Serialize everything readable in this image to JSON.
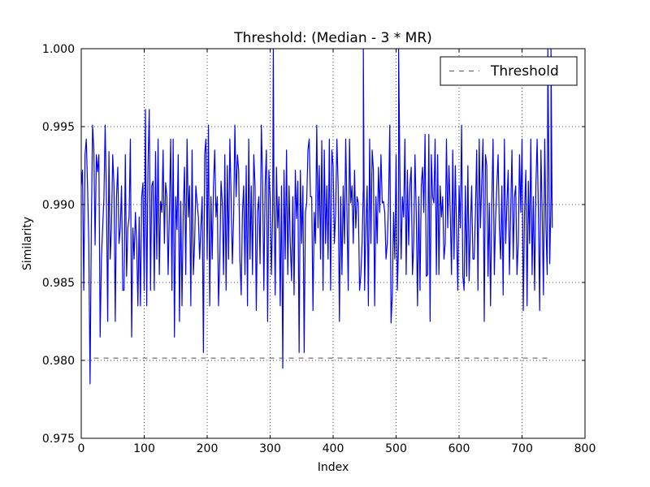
{
  "chart_data": {
    "type": "line",
    "title": "Threshold: (Median - 3 * MR)",
    "xlabel": "Index",
    "ylabel": "Similarity",
    "xlim": [
      0,
      800
    ],
    "ylim": [
      0.975,
      1.0
    ],
    "xticks": [
      0,
      100,
      200,
      300,
      400,
      500,
      600,
      700,
      800
    ],
    "xtick_labels": [
      "0",
      "100",
      "200",
      "300",
      "400",
      "500",
      "600",
      "700",
      "800"
    ],
    "yticks": [
      0.975,
      0.98,
      0.985,
      0.99,
      0.995,
      1.0
    ],
    "ytick_labels": [
      "0.975",
      "0.980",
      "0.985",
      "0.990",
      "0.995",
      "1.000"
    ],
    "grid": true,
    "legend": {
      "position": "top-right",
      "entries": [
        "Threshold"
      ]
    },
    "series": [
      {
        "style": "solid",
        "color": "#0000ff",
        "x_start": 0,
        "x_step": 2,
        "values": [
          0.9912,
          0.9922,
          0.9845,
          0.9932,
          0.9942,
          0.9912,
          0.9875,
          0.9785,
          0.9885,
          0.9951,
          0.9935,
          0.9874,
          0.9932,
          0.9921,
          0.9932,
          0.9815,
          0.9865,
          0.9885,
          0.9904,
          0.9951,
          0.9905,
          0.9825,
          0.9934,
          0.9865,
          0.9885,
          0.9932,
          0.9912,
          0.9825,
          0.9905,
          0.9924,
          0.9875,
          0.9885,
          0.9912,
          0.9845,
          0.9845,
          0.9932,
          0.9854,
          0.9885,
          0.9892,
          0.9942,
          0.9815,
          0.9885,
          0.9865,
          0.9895,
          0.9875,
          0.9835,
          0.9892,
          0.9835,
          0.9905,
          0.9914,
          0.9845,
          0.9961,
          0.9835,
          0.9924,
          0.9961,
          0.9845,
          0.9912,
          0.9915,
          0.9845,
          0.9934,
          0.9865,
          0.9942,
          0.9855,
          0.9902,
          0.9895,
          0.9935,
          0.9875,
          0.9914,
          0.9905,
          0.9855,
          0.9895,
          0.9942,
          0.9845,
          0.9942,
          0.9815,
          0.9905,
          0.9884,
          0.9932,
          0.9825,
          0.9902,
          0.9835,
          0.9895,
          0.9924,
          0.9855,
          0.9942,
          0.9892,
          0.9912,
          0.9835,
          0.9935,
          0.9855,
          0.9875,
          0.9912,
          0.9901,
          0.9892,
          0.9865,
          0.9885,
          0.9905,
          0.9805,
          0.9932,
          0.9942,
          0.9865,
          0.9951,
          0.9835,
          0.9905,
          0.9865,
          0.9912,
          0.9935,
          0.9892,
          0.9905,
          0.9835,
          0.9865,
          0.9915,
          0.9901,
          0.9855,
          0.9932,
          0.9845,
          0.9925,
          0.9865,
          0.9942,
          0.9905,
          0.9862,
          0.9892,
          0.9951,
          0.9905,
          0.9932,
          0.9922,
          0.9865,
          0.9842,
          0.9895,
          0.9912,
          0.9855,
          0.9925,
          0.9835,
          0.9942,
          0.9865,
          0.9912,
          0.9855,
          0.9932,
          0.9912,
          0.9832,
          0.9895,
          0.9905,
          0.9862,
          0.9951,
          0.9915,
          0.9845,
          0.9912,
          0.9935,
          0.9825,
          0.9922,
          0.9905,
          0.9855,
          0.9895,
          0.9912,
          0.9842,
          0.9924,
          0.9885,
          0.9905,
          0.9835,
          0.9912,
          0.9795,
          0.9922,
          0.9865,
          0.9935,
          0.9855,
          0.9912,
          0.9875,
          0.9851,
          0.9905,
          0.9842,
          0.9922,
          0.9891,
          0.9915,
          0.9805,
          0.9922,
          0.9875,
          0.9912,
          0.9805,
          0.9895,
          0.9901,
          0.9935,
          0.9942,
          0.9905,
          0.9905,
          0.9832,
          0.9895,
          0.9875,
          0.9951,
          0.9885,
          0.9925,
          0.9865,
          0.9941,
          0.9845,
          0.9935,
          0.9875,
          0.9912,
          0.9865,
          0.9942,
          0.9845,
          0.9935,
          0.9925,
          0.9875,
          0.9895,
          0.9942,
          0.9912,
          0.9825,
          0.9905,
          0.9855,
          0.9912,
          0.9875,
          0.9942,
          0.9895,
          0.9845,
          0.9942,
          0.9901,
          0.9912,
          0.9875,
          0.9922,
          0.9885,
          0.9905,
          0.9901,
          0.9845,
          0.9855,
          0.9875,
          0.9912,
          0.9845,
          0.9884,
          0.9912,
          0.9835,
          0.9942,
          0.9875,
          0.9935,
          0.9922,
          0.9835,
          0.9905,
          0.9875,
          0.9924,
          0.9895,
          0.9932,
          0.9901,
          0.9902,
          0.9895,
          0.9865,
          0.9875,
          0.9901,
          0.9951,
          0.9824,
          0.9842,
          0.9895,
          0.9865,
          0.9932,
          0.9845,
          0.9875,
          0.9922,
          0.9865,
          0.9905,
          0.9892,
          0.9942,
          0.9855,
          0.9922,
          0.9874,
          0.9912,
          0.9924,
          0.9855,
          0.9875,
          0.9932,
          0.9895,
          0.9835,
          0.9905,
          0.9845,
          0.9912,
          0.9924,
          0.9895,
          0.9945,
          0.9854,
          0.9855,
          0.9945,
          0.9825,
          0.9932,
          0.9905,
          0.9901,
          0.9942,
          0.9855,
          0.9932,
          0.9855,
          0.9912,
          0.9892,
          0.9905,
          0.9865,
          0.9875,
          0.9942,
          0.9885,
          0.9925,
          0.9895,
          0.9855,
          0.9935,
          0.9865,
          0.9925,
          0.9885,
          0.9845,
          0.9912,
          0.9885,
          0.9951,
          0.9854,
          0.9845,
          0.9912,
          0.9854,
          0.9925,
          0.9851,
          0.9885,
          0.9912,
          0.9865,
          0.9865,
          0.9895,
          0.9935,
          0.9845,
          0.9942,
          0.9885,
          0.9915,
          0.9942,
          0.9825,
          0.9932,
          0.9925,
          0.9854,
          0.9901,
          0.9835,
          0.9901,
          0.9942,
          0.9855,
          0.9891,
          0.9912,
          0.9932,
          0.9885,
          0.9865,
          0.9912,
          0.9842,
          0.9942,
          0.9875,
          0.9901,
          0.9922,
          0.9855,
          0.9895,
          0.9935,
          0.9865,
          0.9905,
          0.9912,
          0.9855,
          0.9875,
          0.9932,
          0.9895,
          0.9942,
          0.9832,
          0.9895,
          0.9922,
          0.9835,
          0.9915,
          0.9875,
          0.9942,
          0.9855,
          0.9905,
          0.9845,
          0.9912,
          0.9942,
          0.9895,
          0.9832,
          0.9935,
          0.9895,
          0.9842,
          0.9942,
          0.9885,
          0.9855,
          0.9951,
          0.9862,
          0.9905,
          0.9885
        ]
      },
      {
        "name": "Threshold",
        "style": "dashed",
        "color": "#555555",
        "x": [
          20,
          742
        ],
        "values": [
          0.98015,
          0.98015
        ]
      }
    ],
    "spikes": [
      {
        "x": 305,
        "y": 1.0
      },
      {
        "x": 448,
        "y": 1.0
      },
      {
        "x": 504,
        "y": 1.0
      },
      {
        "x": 741,
        "y": 1.0
      },
      {
        "x": 746,
        "y": 1.0
      }
    ]
  }
}
